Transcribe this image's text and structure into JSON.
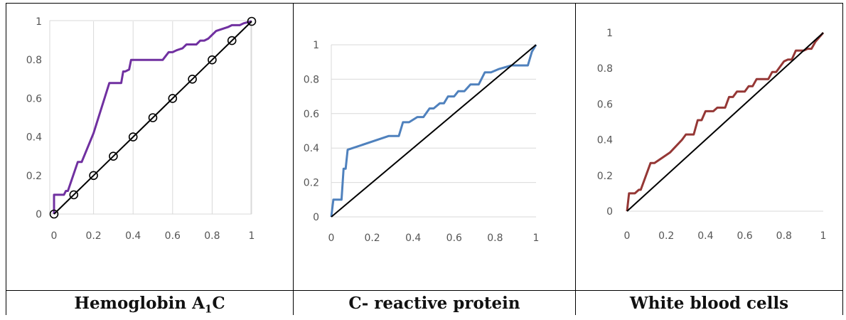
{
  "captions": [
    {
      "pre": "Hemoglobin A",
      "sub": "1",
      "post": "C"
    },
    {
      "pre": "C- reactive protein",
      "sub": "",
      "post": ""
    },
    {
      "pre": "White blood cells",
      "sub": "",
      "post": ""
    }
  ],
  "chart_data": [
    {
      "type": "line",
      "xlim": [
        0,
        1
      ],
      "ylim": [
        0,
        1
      ],
      "xticks": [
        "0",
        "0.2",
        "0.4",
        "0.6",
        "0.8",
        "1"
      ],
      "yticks": [
        "0",
        "0.2",
        "0.4",
        "0.6",
        "0.8",
        "1"
      ],
      "grid": "vertical",
      "series": [
        {
          "color": "#7030A0",
          "marker": "none",
          "x": [
            0,
            0,
            0.05,
            0.06,
            0.07,
            0.12,
            0.13,
            0.14,
            0.2,
            0.28,
            0.3,
            0.34,
            0.35,
            0.36,
            0.38,
            0.39,
            0.4,
            0.55,
            0.58,
            0.6,
            0.62,
            0.65,
            0.67,
            0.7,
            0.72,
            0.74,
            0.76,
            0.78,
            0.8,
            0.82,
            0.85,
            0.88,
            0.9,
            0.94,
            0.96,
            1
          ],
          "y": [
            0,
            0.1,
            0.1,
            0.12,
            0.12,
            0.27,
            0.27,
            0.27,
            0.42,
            0.68,
            0.68,
            0.68,
            0.74,
            0.74,
            0.75,
            0.8,
            0.8,
            0.8,
            0.84,
            0.84,
            0.85,
            0.86,
            0.88,
            0.88,
            0.88,
            0.9,
            0.9,
            0.91,
            0.93,
            0.95,
            0.96,
            0.97,
            0.98,
            0.98,
            0.99,
            1
          ]
        },
        {
          "color": "#000000",
          "marker": "circle",
          "x": [
            0,
            0.1,
            0.2,
            0.3,
            0.4,
            0.5,
            0.6,
            0.7,
            0.8,
            0.9,
            1
          ],
          "y": [
            0,
            0.1,
            0.2,
            0.3,
            0.4,
            0.5,
            0.6,
            0.7,
            0.8,
            0.9,
            1
          ]
        }
      ]
    },
    {
      "type": "line",
      "xlim": [
        0,
        1
      ],
      "ylim": [
        0,
        1
      ],
      "xticks": [
        "0",
        "0.2",
        "0.4",
        "0.6",
        "0.8",
        "1"
      ],
      "yticks": [
        "0",
        "0.2",
        "0.4",
        "0.6",
        "0.8",
        "1"
      ],
      "grid": "horizontal",
      "series": [
        {
          "color": "#4F81BD",
          "marker": "none",
          "x": [
            0,
            0.01,
            0.05,
            0.06,
            0.07,
            0.08,
            0.28,
            0.33,
            0.35,
            0.38,
            0.42,
            0.45,
            0.48,
            0.5,
            0.53,
            0.55,
            0.57,
            0.6,
            0.62,
            0.65,
            0.68,
            0.72,
            0.75,
            0.78,
            0.82,
            0.85,
            0.88,
            0.92,
            0.96,
            0.98,
            1
          ],
          "y": [
            0,
            0.1,
            0.1,
            0.28,
            0.28,
            0.39,
            0.47,
            0.47,
            0.55,
            0.55,
            0.58,
            0.58,
            0.63,
            0.63,
            0.66,
            0.66,
            0.7,
            0.7,
            0.73,
            0.73,
            0.77,
            0.77,
            0.84,
            0.84,
            0.86,
            0.87,
            0.88,
            0.88,
            0.88,
            0.96,
            1
          ]
        },
        {
          "color": "#000000",
          "marker": "none",
          "x": [
            0,
            1
          ],
          "y": [
            0,
            1
          ]
        }
      ]
    },
    {
      "type": "line",
      "xlim": [
        0,
        1
      ],
      "ylim": [
        0,
        1
      ],
      "xticks": [
        "0",
        "0.2",
        "0.4",
        "0.6",
        "0.8",
        "1"
      ],
      "yticks": [
        "0",
        "0.2",
        "0.4",
        "0.6",
        "0.8",
        "1"
      ],
      "grid": "none",
      "series": [
        {
          "color": "#953735",
          "marker": "none",
          "x": [
            0,
            0.01,
            0.04,
            0.06,
            0.07,
            0.12,
            0.14,
            0.18,
            0.22,
            0.28,
            0.3,
            0.32,
            0.34,
            0.36,
            0.38,
            0.4,
            0.44,
            0.46,
            0.5,
            0.52,
            0.54,
            0.56,
            0.6,
            0.62,
            0.64,
            0.66,
            0.7,
            0.72,
            0.74,
            0.76,
            0.8,
            0.82,
            0.84,
            0.86,
            0.9,
            0.92,
            0.94,
            0.96,
            1
          ],
          "y": [
            0,
            0.1,
            0.1,
            0.12,
            0.12,
            0.27,
            0.27,
            0.3,
            0.33,
            0.4,
            0.43,
            0.43,
            0.43,
            0.51,
            0.51,
            0.56,
            0.56,
            0.58,
            0.58,
            0.64,
            0.64,
            0.67,
            0.67,
            0.7,
            0.7,
            0.74,
            0.74,
            0.74,
            0.78,
            0.78,
            0.84,
            0.85,
            0.85,
            0.9,
            0.9,
            0.91,
            0.91,
            0.95,
            1
          ]
        },
        {
          "color": "#000000",
          "marker": "none",
          "x": [
            0,
            1
          ],
          "y": [
            0,
            1
          ]
        }
      ]
    }
  ]
}
